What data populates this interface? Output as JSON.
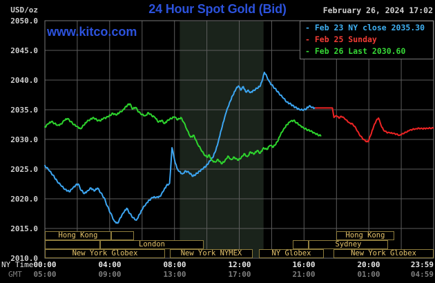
{
  "header": {
    "title": "24 Hour Spot Gold (Bid)",
    "date": "February 26, 2024 17:02",
    "watermark": "www.kitco.com",
    "unit_label": "USD/oz"
  },
  "axes": {
    "ny_label": "NY Time",
    "gmt_label": "GMT"
  },
  "legend": [
    {
      "label": "- Feb 23 NY close 2035.30",
      "color": "#3fb0f2"
    },
    {
      "label": "- Feb 25 Sunday",
      "color": "#f23c35"
    },
    {
      "label": "- Feb 26 Last 2030.60",
      "color": "#37d837"
    }
  ],
  "sessions": [
    {
      "row": 0,
      "start": 0.0,
      "end": 4.1,
      "label": "Hong Kong"
    },
    {
      "row": 0,
      "start": 4.1,
      "end": 5.5,
      "label": ""
    },
    {
      "row": 0,
      "start": 18.0,
      "end": 21.6,
      "label": "Hong Kong"
    },
    {
      "row": 1,
      "start": 0.0,
      "end": 3.4,
      "label": ""
    },
    {
      "row": 1,
      "start": 3.4,
      "end": 9.8,
      "label": "London"
    },
    {
      "row": 1,
      "start": 15.3,
      "end": 16.3,
      "label": ""
    },
    {
      "row": 1,
      "start": 16.3,
      "end": 21.2,
      "label": "Sydney"
    },
    {
      "row": 2,
      "start": 0.0,
      "end": 7.4,
      "label": "New York Globex"
    },
    {
      "row": 2,
      "start": 7.7,
      "end": 12.8,
      "label": "New York NYMEX"
    },
    {
      "row": 2,
      "start": 13.2,
      "end": 17.2,
      "label": "NY Globex"
    },
    {
      "row": 2,
      "start": 17.8,
      "end": 24.0,
      "label": "New York Globex"
    }
  ],
  "colors": {
    "background": "#000000",
    "title": "#2c52dc",
    "watermark": "#2c52dc",
    "date_text": "#cfcfcf",
    "axis_text": "#cfcfcf",
    "ny_time_text": "#e8e8e8",
    "gmt_text": "#7f7f7f",
    "grid": "#5d5d5d",
    "border": "#787878",
    "band": "#1a231b",
    "session_border": "#8f7d3d",
    "session_text": "#e6c46b",
    "blue_line": "#3da6f2",
    "red_line": "#ee2424",
    "green_line": "#2ed52e"
  },
  "chart_data": {
    "type": "line",
    "title": "24 Hour Spot Gold (Bid)",
    "ylabel": "USD/oz",
    "ylim": [
      2010,
      2050
    ],
    "xlim_hours": [
      0,
      24
    ],
    "grid": true,
    "legend_position": "top-right",
    "shaded_band_hours": [
      8.33,
      13.5
    ],
    "y_ticks": [
      "2050.0",
      "2045.0",
      "2040.0",
      "2035.0",
      "2030.0",
      "2025.0",
      "2020.0",
      "2015.0",
      "2010.0"
    ],
    "x_ticks": [
      {
        "h": 0,
        "ny": "00:00",
        "gmt": "05:00"
      },
      {
        "h": 4,
        "ny": "04:00",
        "gmt": "09:00"
      },
      {
        "h": 8,
        "ny": "08:00",
        "gmt": "13:00"
      },
      {
        "h": 12,
        "ny": "12:00",
        "gmt": "17:00"
      },
      {
        "h": 16,
        "ny": "16:00",
        "gmt": "21:00"
      },
      {
        "h": 20,
        "ny": "20:00",
        "gmt": "01:00"
      },
      {
        "h": 23.983,
        "ny": "23:59",
        "gmt": "04:59"
      }
    ],
    "series": [
      {
        "name": "Feb 23",
        "close_label": "NY close 2035.30",
        "color": "#3da6f2",
        "points": [
          [
            0,
            2025.6
          ],
          [
            0.25,
            2024.8
          ],
          [
            0.5,
            2024.0
          ],
          [
            0.75,
            2023.0
          ],
          [
            1.0,
            2022.2
          ],
          [
            1.25,
            2021.6
          ],
          [
            1.5,
            2021.2
          ],
          [
            1.7,
            2021.7
          ],
          [
            1.9,
            2022.3
          ],
          [
            2.05,
            2022.5
          ],
          [
            2.25,
            2021.4
          ],
          [
            2.45,
            2020.9
          ],
          [
            2.65,
            2021.4
          ],
          [
            2.85,
            2021.8
          ],
          [
            3.05,
            2021.3
          ],
          [
            3.25,
            2021.8
          ],
          [
            3.45,
            2021.0
          ],
          [
            3.65,
            2020.2
          ],
          [
            3.85,
            2018.8
          ],
          [
            4.05,
            2017.6
          ],
          [
            4.3,
            2016.2
          ],
          [
            4.5,
            2015.9
          ],
          [
            4.65,
            2016.8
          ],
          [
            4.85,
            2017.6
          ],
          [
            5.05,
            2018.4
          ],
          [
            5.25,
            2017.5
          ],
          [
            5.45,
            2016.8
          ],
          [
            5.65,
            2016.4
          ],
          [
            5.85,
            2017.4
          ],
          [
            6.05,
            2018.4
          ],
          [
            6.25,
            2019.2
          ],
          [
            6.45,
            2019.8
          ],
          [
            6.65,
            2020.2
          ],
          [
            6.9,
            2020.3
          ],
          [
            7.1,
            2020.4
          ],
          [
            7.3,
            2021.2
          ],
          [
            7.5,
            2022.2
          ],
          [
            7.7,
            2022.6
          ],
          [
            7.85,
            2028.6
          ],
          [
            8.0,
            2026.6
          ],
          [
            8.15,
            2025.2
          ],
          [
            8.3,
            2024.6
          ],
          [
            8.5,
            2024.2
          ],
          [
            8.7,
            2024.7
          ],
          [
            8.9,
            2024.4
          ],
          [
            9.15,
            2023.8
          ],
          [
            9.4,
            2024.3
          ],
          [
            9.7,
            2025.0
          ],
          [
            9.95,
            2025.5
          ],
          [
            10.2,
            2026.4
          ],
          [
            10.35,
            2026.9
          ],
          [
            10.5,
            2027.8
          ],
          [
            10.65,
            2029.0
          ],
          [
            10.8,
            2030.6
          ],
          [
            11.0,
            2032.8
          ],
          [
            11.2,
            2034.6
          ],
          [
            11.4,
            2036.2
          ],
          [
            11.6,
            2037.4
          ],
          [
            11.8,
            2038.5
          ],
          [
            11.95,
            2039.0
          ],
          [
            12.1,
            2038.3
          ],
          [
            12.25,
            2038.9
          ],
          [
            12.4,
            2038.0
          ],
          [
            12.55,
            2038.3
          ],
          [
            12.7,
            2037.9
          ],
          [
            12.9,
            2038.3
          ],
          [
            13.1,
            2038.6
          ],
          [
            13.3,
            2039.0
          ],
          [
            13.45,
            2040.2
          ],
          [
            13.55,
            2041.3
          ],
          [
            13.7,
            2040.6
          ],
          [
            13.85,
            2039.8
          ],
          [
            14.0,
            2039.2
          ],
          [
            14.2,
            2038.6
          ],
          [
            14.45,
            2037.8
          ],
          [
            14.7,
            2037.0
          ],
          [
            14.95,
            2036.3
          ],
          [
            15.2,
            2035.9
          ],
          [
            15.45,
            2035.4
          ],
          [
            15.7,
            2035.1
          ],
          [
            15.95,
            2034.9
          ],
          [
            16.15,
            2035.2
          ],
          [
            16.35,
            2035.7
          ],
          [
            16.5,
            2035.4
          ],
          [
            16.7,
            2035.3
          ]
        ]
      },
      {
        "name": "Feb 25",
        "close_label": "Sunday",
        "color": "#ee2424",
        "points": [
          [
            16.7,
            2035.3
          ],
          [
            17.75,
            2035.3
          ],
          [
            17.85,
            2033.7
          ],
          [
            18.0,
            2034.0
          ],
          [
            18.15,
            2033.6
          ],
          [
            18.3,
            2033.9
          ],
          [
            18.45,
            2033.7
          ],
          [
            18.6,
            2033.3
          ],
          [
            18.8,
            2032.8
          ],
          [
            19.0,
            2032.6
          ],
          [
            19.2,
            2031.9
          ],
          [
            19.4,
            2030.9
          ],
          [
            19.6,
            2030.2
          ],
          [
            19.8,
            2029.7
          ],
          [
            19.95,
            2029.6
          ],
          [
            20.1,
            2030.6
          ],
          [
            20.3,
            2032.2
          ],
          [
            20.5,
            2033.4
          ],
          [
            20.6,
            2033.6
          ],
          [
            20.75,
            2032.4
          ],
          [
            20.9,
            2031.6
          ],
          [
            21.1,
            2031.2
          ],
          [
            21.3,
            2031.1
          ],
          [
            21.5,
            2031.0
          ],
          [
            21.7,
            2030.9
          ],
          [
            21.9,
            2030.7
          ],
          [
            22.1,
            2031.0
          ],
          [
            22.3,
            2031.2
          ],
          [
            22.5,
            2031.5
          ],
          [
            22.7,
            2031.7
          ],
          [
            22.9,
            2031.8
          ],
          [
            23.1,
            2031.9
          ],
          [
            23.3,
            2031.8
          ],
          [
            23.6,
            2031.9
          ],
          [
            23.98,
            2031.9
          ]
        ]
      },
      {
        "name": "Feb 26",
        "close_label": "Last 2030.60",
        "color": "#2ed52e",
        "points": [
          [
            0,
            2032.1
          ],
          [
            0.2,
            2032.6
          ],
          [
            0.4,
            2033.0
          ],
          [
            0.6,
            2032.7
          ],
          [
            0.8,
            2032.4
          ],
          [
            1.0,
            2032.6
          ],
          [
            1.2,
            2033.2
          ],
          [
            1.4,
            2033.5
          ],
          [
            1.6,
            2033.0
          ],
          [
            1.8,
            2032.5
          ],
          [
            2.0,
            2032.2
          ],
          [
            2.2,
            2031.8
          ],
          [
            2.4,
            2032.4
          ],
          [
            2.6,
            2033.0
          ],
          [
            2.8,
            2033.4
          ],
          [
            3.0,
            2033.7
          ],
          [
            3.2,
            2033.3
          ],
          [
            3.4,
            2033.1
          ],
          [
            3.6,
            2033.5
          ],
          [
            3.9,
            2033.8
          ],
          [
            4.2,
            2034.4
          ],
          [
            4.4,
            2034.1
          ],
          [
            4.6,
            2034.5
          ],
          [
            4.8,
            2034.9
          ],
          [
            5.1,
            2035.8
          ],
          [
            5.25,
            2036.0
          ],
          [
            5.4,
            2035.1
          ],
          [
            5.6,
            2035.4
          ],
          [
            5.8,
            2034.6
          ],
          [
            6.0,
            2034.2
          ],
          [
            6.2,
            2034.0
          ],
          [
            6.4,
            2034.5
          ],
          [
            6.6,
            2034.0
          ],
          [
            6.8,
            2033.7
          ],
          [
            7.0,
            2032.9
          ],
          [
            7.2,
            2033.2
          ],
          [
            7.4,
            2032.7
          ],
          [
            7.6,
            2033.3
          ],
          [
            7.8,
            2033.5
          ],
          [
            8.0,
            2033.8
          ],
          [
            8.2,
            2033.3
          ],
          [
            8.4,
            2033.7
          ],
          [
            8.6,
            2032.8
          ],
          [
            8.8,
            2031.5
          ],
          [
            9.0,
            2030.4
          ],
          [
            9.2,
            2030.7
          ],
          [
            9.4,
            2029.4
          ],
          [
            9.6,
            2028.5
          ],
          [
            9.8,
            2027.6
          ],
          [
            10.0,
            2027.0
          ],
          [
            10.15,
            2027.4
          ],
          [
            10.3,
            2026.5
          ],
          [
            10.5,
            2026.2
          ],
          [
            10.7,
            2026.6
          ],
          [
            10.9,
            2025.9
          ],
          [
            11.1,
            2026.3
          ],
          [
            11.3,
            2027.2
          ],
          [
            11.5,
            2026.6
          ],
          [
            11.7,
            2027.0
          ],
          [
            11.9,
            2026.5
          ],
          [
            12.1,
            2026.8
          ],
          [
            12.3,
            2027.6
          ],
          [
            12.5,
            2027.1
          ],
          [
            12.7,
            2027.9
          ],
          [
            12.9,
            2027.5
          ],
          [
            13.1,
            2028.1
          ],
          [
            13.3,
            2027.7
          ],
          [
            13.5,
            2028.6
          ],
          [
            13.7,
            2028.3
          ],
          [
            13.9,
            2029.0
          ],
          [
            14.1,
            2028.7
          ],
          [
            14.35,
            2029.6
          ],
          [
            14.55,
            2030.8
          ],
          [
            14.75,
            2031.8
          ],
          [
            14.95,
            2032.5
          ],
          [
            15.15,
            2033.0
          ],
          [
            15.35,
            2033.2
          ],
          [
            15.55,
            2032.8
          ],
          [
            15.75,
            2032.4
          ],
          [
            15.95,
            2032.0
          ],
          [
            16.15,
            2031.7
          ],
          [
            16.4,
            2031.4
          ],
          [
            16.65,
            2031.1
          ],
          [
            16.85,
            2030.8
          ],
          [
            17.03,
            2030.6
          ]
        ]
      }
    ]
  }
}
